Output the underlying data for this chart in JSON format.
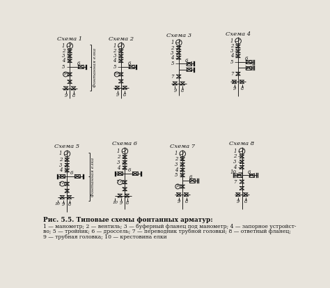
{
  "title": "Рис. 5.5. Типовые схемы фонтанных арматур:",
  "caption_line1": "1 — манометр; 2 — вентиль; 3 — буферный фланец под манометр; 4 — запорное устройст-",
  "caption_line2": "во; 5 — тройник; 6 — дроссель; 7 — переводник трубной головки; 8 — ответный фланец;",
  "caption_line3": "9 — трубная головка; 10 — крестовина елки",
  "bg_color": "#e8e4dc",
  "line_color": "#111111"
}
